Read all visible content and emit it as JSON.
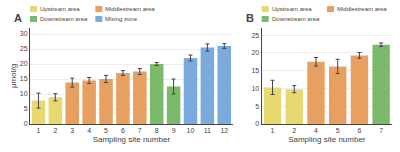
{
  "chart_data": [
    {
      "type": "bar",
      "title": "A",
      "xlabel": "Sampling site number",
      "ylabel": "μmol/g",
      "categories": [
        "1",
        "2",
        "3",
        "4",
        "5",
        "6",
        "7",
        "8",
        "9",
        "10",
        "11",
        "12"
      ],
      "series": [
        {
          "name": "Upstream area",
          "color": "#e8d870",
          "values": [
            7.8,
            8.9,
            null,
            null,
            null,
            null,
            null,
            null,
            null,
            null,
            null,
            null
          ],
          "errors": [
            2.5,
            1.2,
            null,
            null,
            null,
            null,
            null,
            null,
            null,
            null,
            null,
            null
          ]
        },
        {
          "name": "Middlestream area",
          "color": "#e8a060",
          "values": [
            null,
            null,
            13.8,
            14.5,
            15.0,
            17.0,
            17.5,
            null,
            null,
            null,
            null,
            null
          ],
          "errors": [
            null,
            null,
            1.5,
            1.0,
            1.2,
            0.8,
            1.0,
            null,
            null,
            null,
            null,
            null
          ]
        },
        {
          "name": "Downstream area",
          "color": "#7aba6a",
          "values": [
            null,
            null,
            null,
            null,
            null,
            null,
            null,
            20.0,
            12.5,
            null,
            null,
            null
          ],
          "errors": [
            null,
            null,
            null,
            null,
            null,
            null,
            null,
            0.5,
            2.5,
            null,
            null,
            null
          ]
        },
        {
          "name": "Mixing zone",
          "color": "#7aabdc",
          "values": [
            null,
            null,
            null,
            null,
            null,
            null,
            null,
            null,
            null,
            22.0,
            25.5,
            26.0
          ],
          "errors": [
            null,
            null,
            null,
            null,
            null,
            null,
            null,
            null,
            null,
            1.0,
            1.2,
            0.8
          ]
        }
      ],
      "ylim": [
        0,
        32
      ],
      "yticks": [
        0,
        5,
        10,
        15,
        20,
        25,
        30
      ],
      "grid": true,
      "legend": "upper left"
    },
    {
      "type": "bar",
      "title": "B",
      "xlabel": "Sampling site number",
      "categories": [
        "1",
        "2",
        "4",
        "5",
        "6",
        "7"
      ],
      "series": [
        {
          "name": "Upstream area",
          "color": "#e8d870",
          "values": [
            10.3,
            9.8,
            null,
            null,
            null,
            null
          ],
          "errors": [
            2.0,
            1.0,
            null,
            null,
            null,
            null
          ]
        },
        {
          "name": "Middlestream area",
          "color": "#e8a060",
          "values": [
            null,
            null,
            17.5,
            16.2,
            19.3,
            null
          ],
          "errors": [
            null,
            null,
            1.2,
            2.0,
            0.8,
            null
          ]
        },
        {
          "name": "Downstream area",
          "color": "#7aba6a",
          "values": [
            null,
            null,
            null,
            null,
            null,
            22.3
          ],
          "errors": [
            null,
            null,
            null,
            null,
            null,
            0.5
          ]
        }
      ],
      "ylim": [
        0,
        27
      ],
      "yticks": [
        0,
        5,
        10,
        15,
        20,
        25
      ],
      "grid": true,
      "legend": "upper left"
    }
  ]
}
